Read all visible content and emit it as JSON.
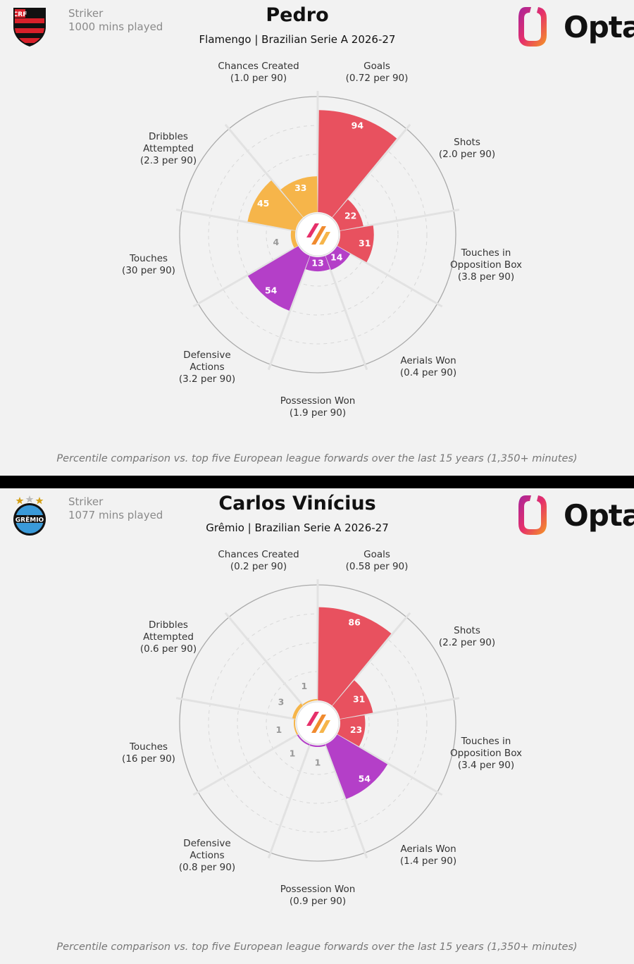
{
  "chart_data": [
    {
      "type": "radar",
      "title": "Pedro",
      "subtitle": "Flamengo | Brazilian Serie A 2026-27",
      "position": "Striker",
      "minutes": "1000 mins played",
      "brand": "Opta",
      "note": "Percentile comparison vs. top five European league forwards over the last 15 years (1,350+ minutes)",
      "scale": [
        0,
        100
      ],
      "categories": [
        {
          "name": [
            "Goals"
          ],
          "per90": "(0.72 per 90)",
          "value": 94
        },
        {
          "name": [
            "Shots"
          ],
          "per90": "(2.0 per 90)",
          "value": 22
        },
        {
          "name": [
            "Touches in",
            "Opposition Box"
          ],
          "per90": "(3.8 per 90)",
          "value": 31
        },
        {
          "name": [
            "Aerials Won"
          ],
          "per90": "(0.4 per 90)",
          "value": 14
        },
        {
          "name": [
            "Possession Won"
          ],
          "per90": "(1.9 per 90)",
          "value": 13
        },
        {
          "name": [
            "Defensive",
            "Actions"
          ],
          "per90": "(3.2 per 90)",
          "value": 54
        },
        {
          "name": [
            "Touches"
          ],
          "per90": "(30 per 90)",
          "value": 4
        },
        {
          "name": [
            "Dribbles",
            "Attempted"
          ],
          "per90": "(2.3 per 90)",
          "value": 45
        },
        {
          "name": [
            "Chances Created"
          ],
          "per90": "(1.0 per 90)",
          "value": 33
        }
      ]
    },
    {
      "type": "radar",
      "title": "Carlos Vinícius",
      "subtitle": "Grêmio | Brazilian Serie A 2026-27",
      "position": "Striker",
      "minutes": "1077 mins played",
      "brand": "Opta",
      "note": "Percentile comparison vs. top five European league forwards over the last 15 years (1,350+ minutes)",
      "scale": [
        0,
        100
      ],
      "categories": [
        {
          "name": [
            "Goals"
          ],
          "per90": "(0.58 per 90)",
          "value": 86
        },
        {
          "name": [
            "Shots"
          ],
          "per90": "(2.2 per 90)",
          "value": 31
        },
        {
          "name": [
            "Touches in",
            "Opposition Box"
          ],
          "per90": "(3.4 per 90)",
          "value": 23
        },
        {
          "name": [
            "Aerials Won"
          ],
          "per90": "(1.4 per 90)",
          "value": 54
        },
        {
          "name": [
            "Possession Won"
          ],
          "per90": "(0.9 per 90)",
          "value": 1
        },
        {
          "name": [
            "Defensive",
            "Actions"
          ],
          "per90": "(0.8 per 90)",
          "value": 1
        },
        {
          "name": [
            "Touches"
          ],
          "per90": "(16 per 90)",
          "value": 1
        },
        {
          "name": [
            "Dribbles",
            "Attempted"
          ],
          "per90": "(0.6 per 90)",
          "value": 3
        },
        {
          "name": [
            "Chances Created"
          ],
          "per90": "(0.2 per 90)",
          "value": 1
        }
      ]
    }
  ],
  "colors": {
    "attacking": "#e8515f",
    "possession": "#f6b54a",
    "defending": "#b43fc8",
    "grid": "#d8d8d8",
    "background": "#f2f2f2"
  },
  "crests": [
    "flamengo-crest",
    "gremio-crest"
  ]
}
